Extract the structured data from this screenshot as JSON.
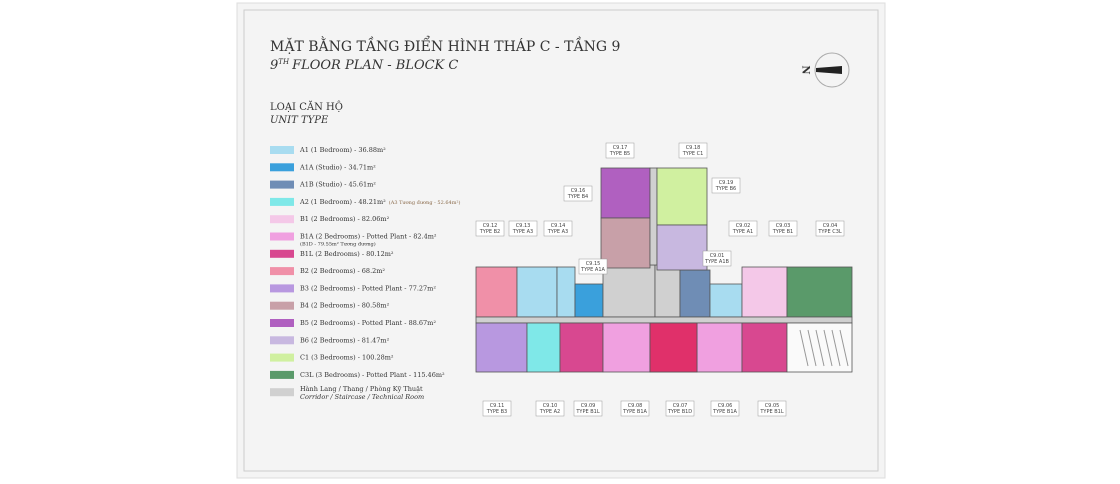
{
  "header": {
    "title": "MẶT BẰNG TẦNG ĐIỂN HÌNH THÁP C - TẦNG 9",
    "subtitle": {
      "number": "9",
      "sup": "TH",
      "text": "FLOOR PLAN - BLOCK C"
    }
  },
  "legend": {
    "heading": "LOẠI CĂN HỘ",
    "subheading": "UNIT TYPE",
    "items": [
      {
        "color": "#a8dcf0",
        "text": "A1 (1 Bedroom) - 36.88m²"
      },
      {
        "color": "#3aa0dc",
        "text": "A1A (Studio) - 34.71m²"
      },
      {
        "color": "#6f8db5",
        "text": "A1B (Studio) - 45.61m²"
      },
      {
        "color": "#7fe8e8",
        "text": "A2 (1 Bedroom) - 48.21m²",
        "note": "(A3 Tương đương - 52.64m²)"
      },
      {
        "color": "#f4c8e8",
        "text": "B1 (2 Bedrooms) - 82.06m²"
      },
      {
        "color": "#f0a0e0",
        "text": "B1A (2 Bedrooms) - Potted Plant - 82.4m²",
        "note": "(B1D - 79.55m² Tương đương)"
      },
      {
        "color": "#d84890",
        "text": "B1L (2 Bedrooms) - 80.12m²"
      },
      {
        "color": "#f090a8",
        "text": "B2 (2 Bedrooms) - 68.2m²"
      },
      {
        "color": "#b898e0",
        "text": "B3 (2 Bedrooms) - Potted Plant - 77.27m²"
      },
      {
        "color": "#c8a0a8",
        "text": "B4 (2 Bedrooms) - 80.58m²"
      },
      {
        "color": "#b060c0",
        "text": "B5 (2 Bedrooms) - Potted Plant - 88.67m²"
      },
      {
        "color": "#c8b8e0",
        "text": "B6 (2 Bedrooms) - 81.47m²"
      },
      {
        "color": "#d0f0a0",
        "text": "C1 (3 Bedrooms) - 100.28m²"
      },
      {
        "color": "#5a9a6a",
        "text": "C3L (3 Bedrooms) - Potted Plant - 115.46m²"
      },
      {
        "color": "#d0d0d0",
        "text": "Hành Lang / Thang / Phòng Kỹ Thuật",
        "note": "Corridor / Staircase / Technical Room"
      }
    ]
  },
  "compass": {
    "label": "N"
  },
  "units": [
    {
      "code": "C9.17",
      "type": "TYPE B5"
    },
    {
      "code": "C9.18",
      "type": "TYPE C1"
    },
    {
      "code": "C9.19",
      "type": "TYPE B6"
    },
    {
      "code": "C9.16",
      "type": "TYPE B4"
    },
    {
      "code": "C9.12",
      "type": "TYPE B2"
    },
    {
      "code": "C9.13",
      "type": "TYPE A3"
    },
    {
      "code": "C9.14",
      "type": "TYPE A3"
    },
    {
      "code": "C9.15",
      "type": "TYPE A1A"
    },
    {
      "code": "C9.02",
      "type": "TYPE A1"
    },
    {
      "code": "C9.03",
      "type": "TYPE B1"
    },
    {
      "code": "C9.04",
      "type": "TYPE C3L"
    },
    {
      "code": "C9.01",
      "type": "TYPE A1B"
    },
    {
      "code": "C9.11",
      "type": "TYPE B3"
    },
    {
      "code": "C9.10",
      "type": "TYPE A2"
    },
    {
      "code": "C9.09",
      "type": "TYPE B1L"
    },
    {
      "code": "C9.08",
      "type": "TYPE B1A"
    },
    {
      "code": "C9.07",
      "type": "TYPE B1D"
    },
    {
      "code": "C9.06",
      "type": "TYPE B1A"
    },
    {
      "code": "C9.05",
      "type": "TYPE B1L"
    }
  ]
}
